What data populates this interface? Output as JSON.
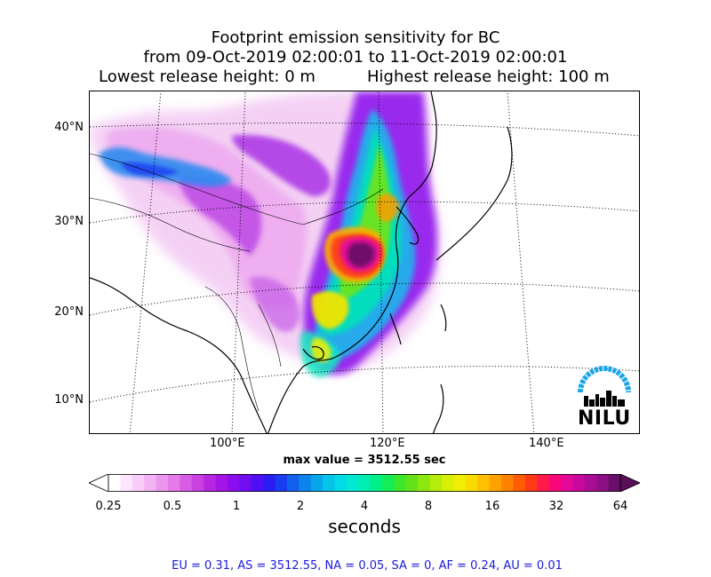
{
  "title": {
    "line1": "Footprint emission sensitivity for BC",
    "line2": "from 09-Oct-2019 02:00:01 to 11-Oct-2019 02:00:01",
    "lowest": "Lowest release height: 0 m",
    "highest": "Highest release height: 100 m"
  },
  "map": {
    "lat_labels": [
      "40°N",
      "30°N",
      "20°N",
      "10°N"
    ],
    "lon_labels": [
      "100°E",
      "120°E",
      "140°E"
    ],
    "max_value_text": "max value = 3512.55 sec",
    "logo_text": "NILU"
  },
  "colorbar": {
    "tick_labels": [
      "0.25",
      "0.5",
      "1",
      "2",
      "4",
      "8",
      "16",
      "32",
      "64"
    ],
    "units": "seconds",
    "colors": [
      "#ffffff",
      "#fde6fd",
      "#f9cdf8",
      "#f3b3f3",
      "#eb96ef",
      "#e47be9",
      "#d85de5",
      "#c941e1",
      "#b826e0",
      "#a514e6",
      "#8c0ded",
      "#700ef2",
      "#4f0ff3",
      "#2a1cf2",
      "#1a3cf0",
      "#1360ee",
      "#0c84ec",
      "#07a6ea",
      "#04c4ea",
      "#02dbe6",
      "#00e8d2",
      "#00eeb0",
      "#00ef88",
      "#15ec55",
      "#3be72a",
      "#63e317",
      "#8ee80f",
      "#b5ec0a",
      "#d7ef05",
      "#f0ee02",
      "#fadb00",
      "#fec000",
      "#ffa200",
      "#ff8200",
      "#ff5d00",
      "#ff3a15",
      "#ff1a4a",
      "#f8087a",
      "#e40898",
      "#c9079f",
      "#aa0c96",
      "#8b1083",
      "#6a0f69"
    ],
    "over_color": "#5a0f56"
  },
  "stats": {
    "text": "EU = 0.31,  AS = 3512.55,  NA = 0.05,  SA = 0,  AF = 0.24,  AU = 0.01"
  }
}
